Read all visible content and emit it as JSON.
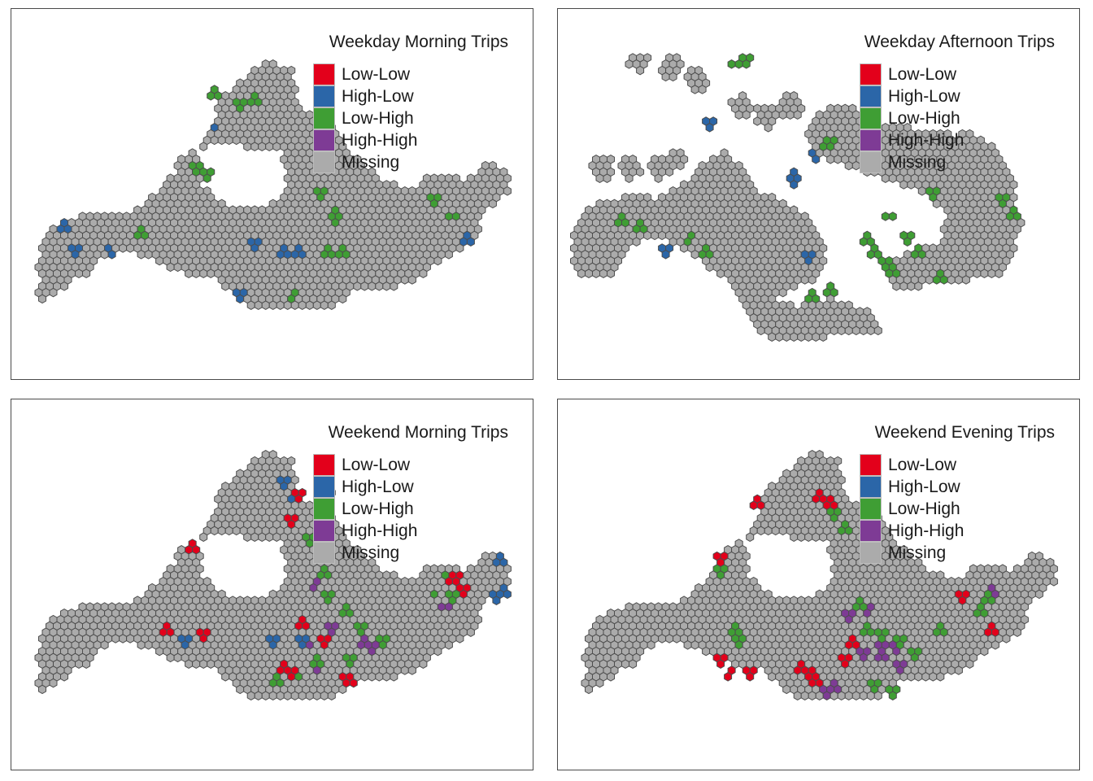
{
  "legend": {
    "categories": [
      {
        "key": "low_low",
        "label": "Low-Low",
        "color": "#e3001b"
      },
      {
        "key": "high_low",
        "label": "High-Low",
        "color": "#2b66a8"
      },
      {
        "key": "low_high",
        "label": "Low-High",
        "color": "#3f9e34"
      },
      {
        "key": "high_high",
        "label": "High-High",
        "color": "#7e3b95"
      },
      {
        "key": "missing",
        "label": "Missing",
        "color": "#ababab"
      }
    ]
  },
  "panels": [
    {
      "id": "weekday-morning",
      "title": "Weekday Morning Trips"
    },
    {
      "id": "weekday-afternoon",
      "title": "Weekday Afternoon Trips"
    },
    {
      "id": "weekend-morning",
      "title": "Weekend Morning Trips"
    },
    {
      "id": "weekend-evening",
      "title": "Weekend Evening Trips"
    }
  ]
}
